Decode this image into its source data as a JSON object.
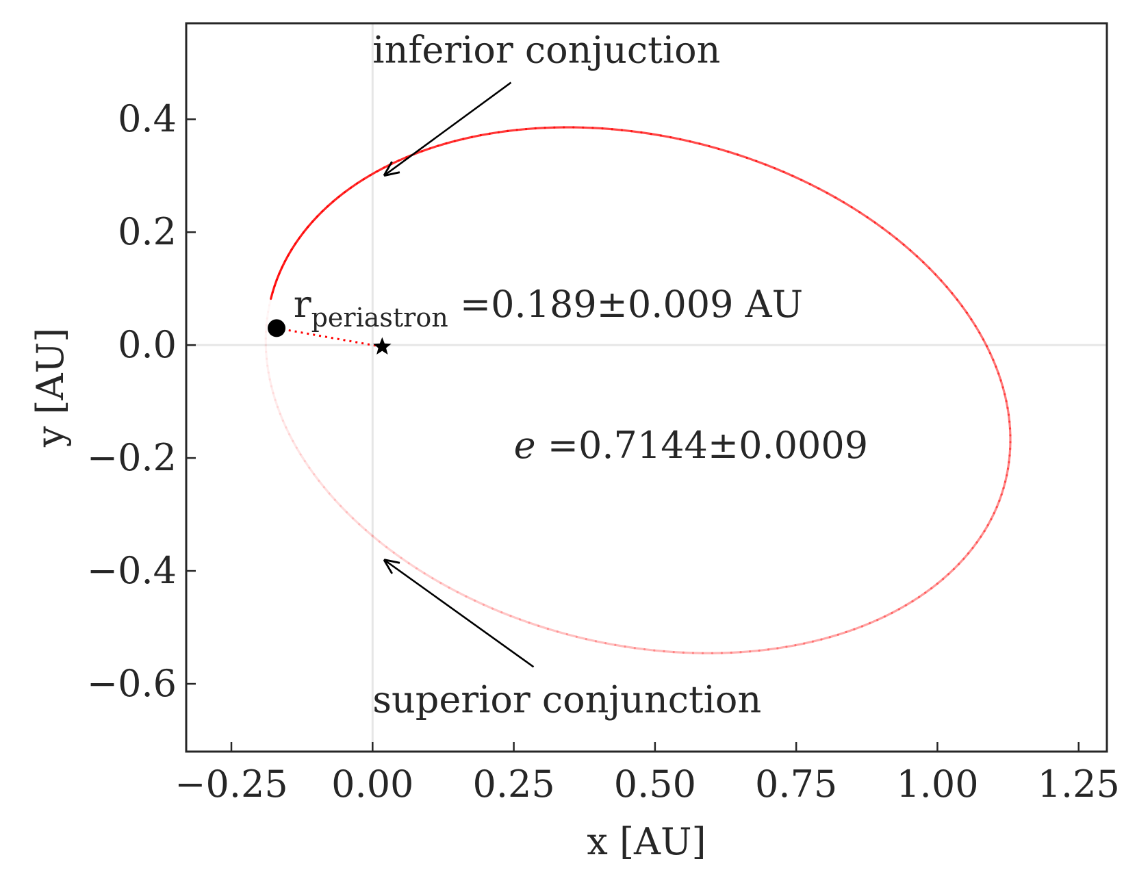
{
  "chart_data": {
    "type": "line",
    "title": "",
    "xlabel": "x [AU]",
    "ylabel": "y [AU]",
    "xlim": [
      -0.33,
      1.3
    ],
    "ylim": [
      -0.72,
      0.57
    ],
    "xticks": [
      -0.25,
      0.0,
      0.25,
      0.5,
      0.75,
      1.0,
      1.25
    ],
    "yticks": [
      -0.6,
      -0.4,
      -0.2,
      0.0,
      0.2,
      0.4
    ],
    "xtick_labels": [
      "−0.25",
      "0.00",
      "0.25",
      "0.50",
      "0.75",
      "1.00",
      "1.25"
    ],
    "ytick_labels": [
      "−0.6",
      "−0.4",
      "−0.2",
      "0.0",
      "0.2",
      "0.4"
    ],
    "grid": false,
    "reference_lines": {
      "x": 0,
      "y": 0
    },
    "orbit": {
      "eccentricity": 0.7144,
      "center": [
        0.47,
        -0.08
      ],
      "semi_major": 0.67,
      "semi_minor": 0.45,
      "orientation_deg": -14,
      "color": "#ff0000",
      "fade": "opaque after periastron, fading to transparent by next passage"
    },
    "periastron_point": {
      "x": -0.17,
      "y": 0.03,
      "color": "#000000"
    },
    "star": {
      "x": 0.017,
      "y": -0.003,
      "marker": "star",
      "color": "#000000"
    },
    "annotations": {
      "inferior": {
        "text": "inferior conjuction",
        "target": [
          0.02,
          0.3
        ],
        "text_pos": [
          0.0,
          0.5
        ],
        "arrow_start": [
          0.245,
          0.465
        ]
      },
      "superior": {
        "text": "superior conjunction",
        "target": [
          0.02,
          -0.38
        ],
        "text_pos": [
          0.0,
          -0.65
        ],
        "arrow_start": [
          0.285,
          -0.57
        ]
      },
      "periastron": {
        "symbol": "r",
        "subscript": "periastron",
        "value": " =0.189±0.009 AU",
        "pos": [
          -0.14,
          0.05
        ]
      },
      "eccentricity": {
        "symbol": "e",
        "value": " =0.7144±0.0009",
        "pos": [
          0.25,
          -0.2
        ]
      }
    }
  }
}
